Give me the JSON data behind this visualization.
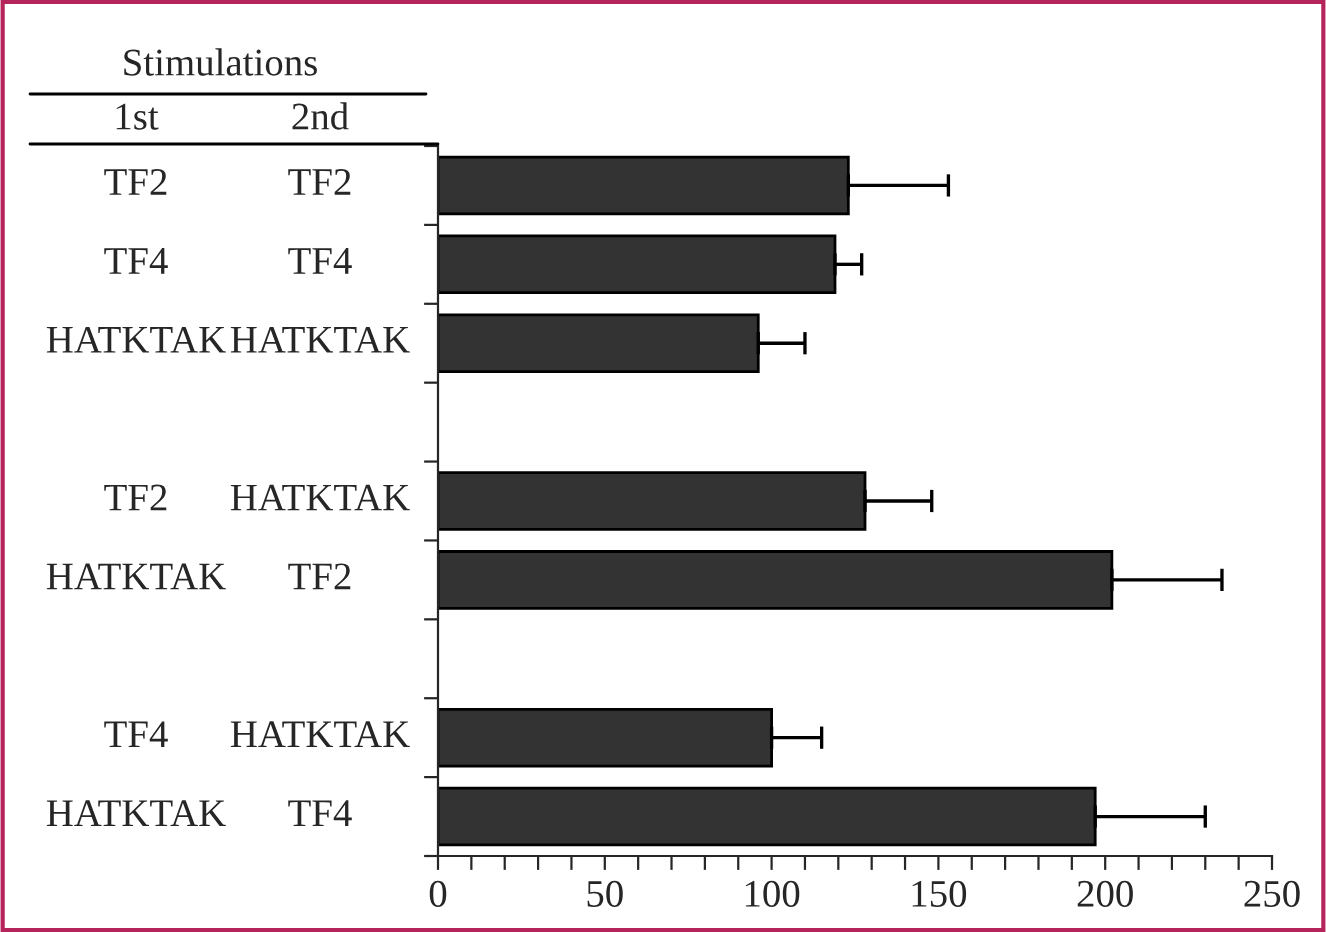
{
  "chart_data": {
    "type": "bar",
    "orientation": "horizontal",
    "categories": [
      "TF2",
      "TF4",
      "HATKTAK",
      null,
      "TF2",
      "HATKTAK",
      null,
      "TF4",
      "HATKTAK"
    ],
    "y2_categories": [
      "TF2",
      "TF4",
      "HATKTAK",
      null,
      "HATKTAK",
      "TF2",
      null,
      "HATKTAK",
      "TF4"
    ],
    "values": [
      123,
      119,
      96,
      null,
      128,
      202,
      null,
      100,
      197
    ],
    "errors": [
      30,
      8,
      14,
      null,
      20,
      33,
      null,
      15,
      33
    ],
    "color": "#333333",
    "xlim": [
      0,
      250
    ],
    "xticks": [
      0,
      {
        "value": 10,
        "label": null
      },
      {
        "value": 20,
        "label": null
      },
      {
        "value": 30,
        "label": null
      },
      {
        "value": 40,
        "label": null
      },
      50,
      {
        "value": 60,
        "label": null
      },
      {
        "value": 70,
        "label": null
      },
      {
        "value": 80,
        "label": null
      },
      {
        "value": 90,
        "label": null
      },
      100,
      {
        "value": 110,
        "label": null
      },
      {
        "value": 120,
        "label": null
      },
      {
        "value": 130,
        "label": null
      },
      {
        "value": 140,
        "label": null
      },
      150,
      {
        "value": 160,
        "label": null
      },
      {
        "value": 170,
        "label": null
      },
      {
        "value": 180,
        "label": null
      },
      {
        "value": 190,
        "label": null
      },
      200,
      {
        "value": 210,
        "label": null
      },
      {
        "value": 220,
        "label": null
      },
      {
        "value": 230,
        "label": null
      },
      {
        "value": 240,
        "label": null
      },
      250
    ],
    "annotations": [
      "Stimulations",
      "1st",
      "2nd"
    ],
    "grid": false
  }
}
